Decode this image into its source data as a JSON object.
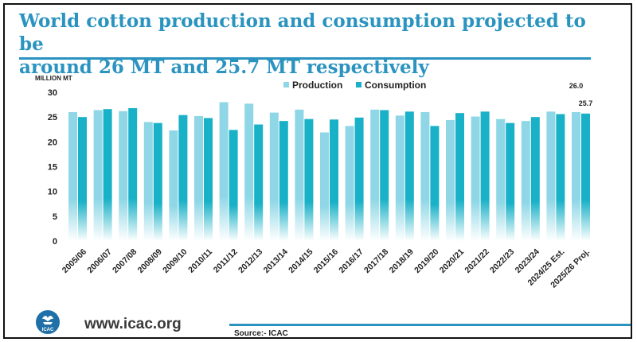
{
  "header": {
    "title_line1": "World cotton production and consumption projected to be",
    "title_line2": "around 26 MT and 25.7 MT respectively"
  },
  "footer": {
    "website": "www.icac.org",
    "logo_text": "ICAC",
    "source": "Source:- ICAC"
  },
  "colors": {
    "title": "#2a93bf",
    "production": "#8fd7e6",
    "consumption": "#19b1c7"
  },
  "chart_data": {
    "type": "bar",
    "ylabel": "MILLION MT",
    "ylim": [
      0,
      30
    ],
    "yticks": [
      0,
      5,
      10,
      15,
      20,
      25,
      30
    ],
    "grid": false,
    "legend_position": "top-center",
    "categories": [
      "2005/06",
      "2006/07",
      "2007/08",
      "2008/09",
      "2009/10",
      "2010/11",
      "2011/12",
      "2012/13",
      "2013/14",
      "2014/15",
      "2015/16",
      "2016/17",
      "2017/18",
      "2018/19",
      "2019/20",
      "2020/21",
      "2021/22",
      "2022/23",
      "2023/24",
      "2024/25 Est.",
      "2025/26 Proj."
    ],
    "series": [
      {
        "name": "Production",
        "color": "#8fd7e6",
        "values": [
          26.0,
          26.4,
          26.2,
          24.0,
          22.3,
          25.2,
          28.0,
          27.7,
          25.9,
          26.5,
          21.9,
          23.2,
          26.5,
          25.3,
          26.0,
          24.4,
          25.1,
          24.6,
          24.2,
          26.1,
          26.0
        ]
      },
      {
        "name": "Consumption",
        "color": "#19b1c7",
        "values": [
          25.0,
          26.6,
          26.8,
          23.8,
          25.4,
          24.8,
          22.4,
          23.5,
          24.2,
          24.6,
          24.5,
          24.9,
          26.4,
          26.1,
          23.2,
          25.8,
          26.1,
          23.8,
          25.0,
          25.6,
          25.7
        ]
      }
    ],
    "annotations": [
      {
        "category": "2025/26 Proj.",
        "series": "Production",
        "text": "26.0"
      },
      {
        "category": "2025/26 Proj.",
        "series": "Consumption",
        "text": "25.7"
      }
    ]
  }
}
